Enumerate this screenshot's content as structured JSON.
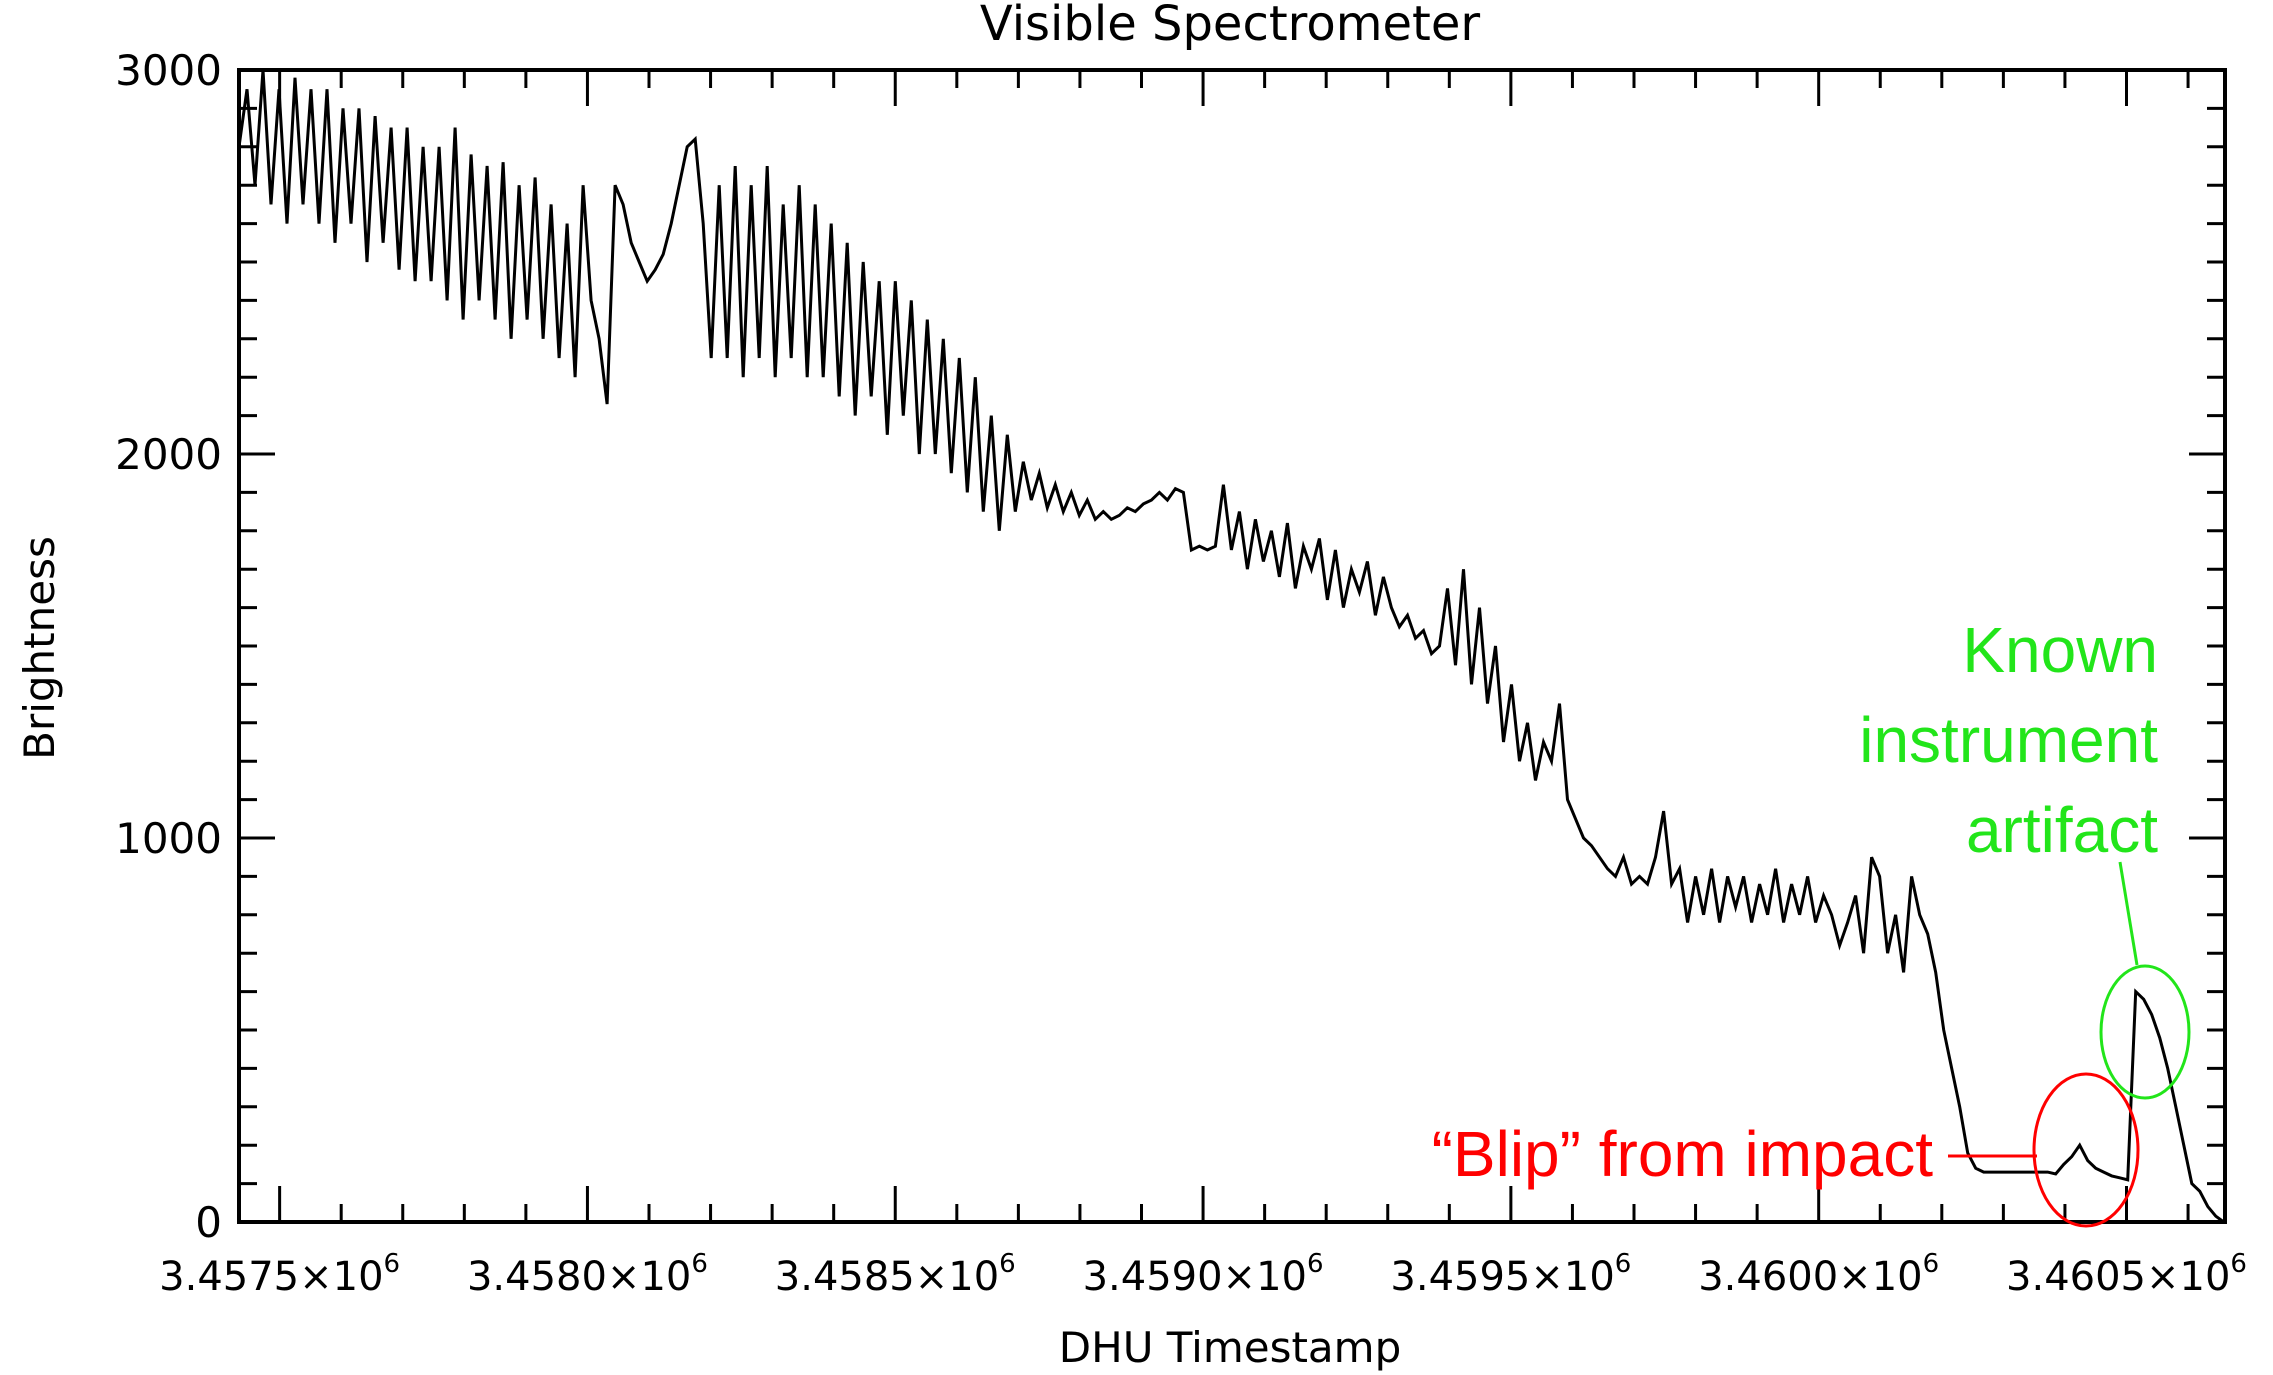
{
  "chart_data": {
    "type": "line",
    "title": "Visible Spectrometer",
    "xlabel": "DHU Timestamp",
    "ylabel": "Brightness",
    "xlim": [
      3457434,
      3460660
    ],
    "ylim": [
      0,
      3000
    ],
    "grid": false,
    "x_start": 3457434,
    "x_step": 13,
    "series": [
      {
        "name": "Brightness",
        "color": "#000000",
        "values": [
          2800,
          2950,
          2700,
          3000,
          2650,
          2950,
          2600,
          2980,
          2650,
          2950,
          2600,
          2950,
          2550,
          2900,
          2600,
          2900,
          2500,
          2880,
          2550,
          2850,
          2480,
          2850,
          2450,
          2800,
          2450,
          2800,
          2400,
          2850,
          2350,
          2780,
          2400,
          2750,
          2350,
          2760,
          2300,
          2700,
          2350,
          2720,
          2300,
          2650,
          2250,
          2600,
          2200,
          2700,
          2400,
          2300,
          2130,
          2700,
          2650,
          2550,
          2500,
          2450,
          2480,
          2520,
          2600,
          2700,
          2800,
          2820,
          2600,
          2250,
          2700,
          2250,
          2750,
          2200,
          2700,
          2250,
          2750,
          2200,
          2650,
          2250,
          2700,
          2200,
          2650,
          2200,
          2600,
          2150,
          2550,
          2100,
          2500,
          2150,
          2450,
          2050,
          2450,
          2100,
          2400,
          2000,
          2350,
          2000,
          2300,
          1950,
          2250,
          1900,
          2200,
          1850,
          2100,
          1800,
          2050,
          1850,
          1980,
          1880,
          1950,
          1860,
          1920,
          1850,
          1900,
          1840,
          1880,
          1830,
          1850,
          1830,
          1840,
          1860,
          1850,
          1870,
          1880,
          1900,
          1880,
          1910,
          1900,
          1750,
          1760,
          1750,
          1760,
          1920,
          1750,
          1850,
          1700,
          1830,
          1720,
          1800,
          1680,
          1820,
          1650,
          1760,
          1700,
          1780,
          1620,
          1750,
          1600,
          1700,
          1640,
          1720,
          1580,
          1680,
          1600,
          1550,
          1580,
          1520,
          1540,
          1480,
          1500,
          1650,
          1450,
          1700,
          1400,
          1600,
          1350,
          1500,
          1250,
          1400,
          1200,
          1300,
          1150,
          1250,
          1200,
          1350,
          1100,
          1050,
          1000,
          980,
          950,
          920,
          900,
          950,
          880,
          900,
          880,
          950,
          1070,
          880,
          920,
          780,
          900,
          800,
          920,
          780,
          900,
          820,
          900,
          780,
          880,
          800,
          920,
          780,
          880,
          800,
          900,
          780,
          850,
          800,
          720,
          780,
          850,
          700,
          950,
          900,
          700,
          800,
          650,
          900,
          800,
          750,
          650,
          500,
          400,
          300,
          180,
          140,
          130,
          130,
          130,
          130,
          130,
          130,
          130,
          130,
          130,
          125,
          150,
          170,
          200,
          160,
          140,
          130,
          120,
          115,
          110,
          600,
          580,
          540,
          480,
          400,
          300,
          200,
          100,
          80,
          40,
          15,
          0
        ]
      }
    ],
    "x_ticks": [
      {
        "value": 3457500,
        "mantissa": "3.4575×10",
        "exp": "6"
      },
      {
        "value": 3458000,
        "mantissa": "3.4580×10",
        "exp": "6"
      },
      {
        "value": 3458500,
        "mantissa": "3.4585×10",
        "exp": "6"
      },
      {
        "value": 3459000,
        "mantissa": "3.4590×10",
        "exp": "6"
      },
      {
        "value": 3459500,
        "mantissa": "3.4595×10",
        "exp": "6"
      },
      {
        "value": 3460000,
        "mantissa": "3.4600×10",
        "exp": "6"
      },
      {
        "value": 3460500,
        "mantissa": "3.4605×10",
        "exp": "6"
      }
    ],
    "y_ticks": [
      {
        "value": 0,
        "label": "0"
      },
      {
        "value": 1000,
        "label": "1000"
      },
      {
        "value": 2000,
        "label": "2000"
      },
      {
        "value": 3000,
        "label": "3000"
      }
    ],
    "minor_step_x": 100,
    "minor_step_y": 100,
    "annotations": [
      {
        "text": "“Blip” from impact",
        "color": "#ff0000",
        "target_x": 3460300,
        "target_y": 200
      },
      {
        "lines": [
          "Known",
          "instrument",
          "artifact"
        ],
        "color": "#22e51a",
        "target_x": 3460530,
        "target_y": 600
      }
    ]
  }
}
